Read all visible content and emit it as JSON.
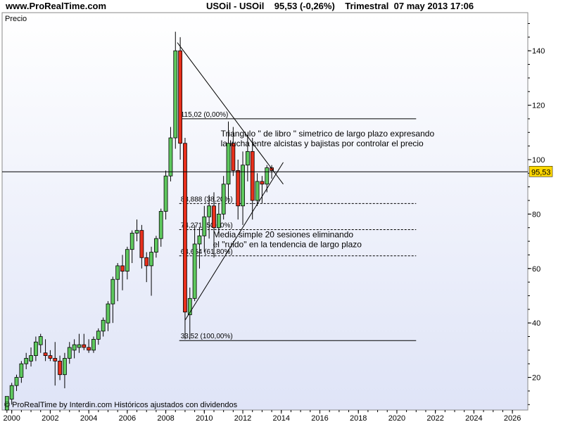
{
  "header": {
    "site": "www.ProRealTime.com",
    "symbol": "USOil - USOil",
    "price_change": "95,53 (-0,26%)",
    "period": "Trimestral",
    "datetime": "07 may 2013 17:06"
  },
  "panel": {
    "label": "Precio"
  },
  "footer": {
    "credit": "© ProRealTime by Interdin.com  Históricos ajustados con dividendos"
  },
  "colors": {
    "up": "#5ec85e",
    "down": "#e8301c",
    "bg_top": "#ffffff",
    "bg_bottom": "#dfe4f7",
    "price_tag": "#ffd700"
  },
  "chart_data": {
    "type": "candlestick",
    "x_axis": {
      "range": [
        1999.5,
        2026.8
      ],
      "ticks": [
        "2000",
        "2002",
        "2004",
        "2006",
        "2008",
        "2010",
        "2012",
        "2014",
        "2016",
        "2018",
        "2020",
        "2022",
        "2024",
        "2026"
      ]
    },
    "y_axis": {
      "range": [
        8,
        154
      ],
      "ticks": [
        "20",
        "40",
        "60",
        "80",
        "100",
        "120",
        "140"
      ],
      "position": "right"
    },
    "current_price": {
      "value": 95.53,
      "label": "95,53"
    },
    "candles": [
      {
        "t": 1999.75,
        "o": 8,
        "h": 13,
        "l": 7,
        "c": 13
      },
      {
        "t": 2000.0,
        "o": 12,
        "h": 18,
        "l": 10,
        "c": 17
      },
      {
        "t": 2000.25,
        "o": 17,
        "h": 21,
        "l": 15,
        "c": 20
      },
      {
        "t": 2000.5,
        "o": 20,
        "h": 26,
        "l": 18,
        "c": 25
      },
      {
        "t": 2000.75,
        "o": 25,
        "h": 29,
        "l": 23,
        "c": 27
      },
      {
        "t": 2001.0,
        "o": 26,
        "h": 31,
        "l": 24,
        "c": 28
      },
      {
        "t": 2001.25,
        "o": 28,
        "h": 35,
        "l": 26,
        "c": 33
      },
      {
        "t": 2001.5,
        "o": 32,
        "h": 36,
        "l": 29,
        "c": 35
      },
      {
        "t": 2001.75,
        "o": 29,
        "h": 34,
        "l": 26,
        "c": 28
      },
      {
        "t": 2002.0,
        "o": 28,
        "h": 30,
        "l": 26,
        "c": 27
      },
      {
        "t": 2002.25,
        "o": 27,
        "h": 33,
        "l": 17,
        "c": 26
      },
      {
        "t": 2002.5,
        "o": 26,
        "h": 28,
        "l": 19,
        "c": 21
      },
      {
        "t": 2002.75,
        "o": 21,
        "h": 29,
        "l": 16,
        "c": 27
      },
      {
        "t": 2003.0,
        "o": 27,
        "h": 33,
        "l": 25,
        "c": 31
      },
      {
        "t": 2003.25,
        "o": 30,
        "h": 34,
        "l": 27,
        "c": 32
      },
      {
        "t": 2003.5,
        "o": 31,
        "h": 36,
        "l": 29,
        "c": 32
      },
      {
        "t": 2003.75,
        "o": 32,
        "h": 36,
        "l": 30,
        "c": 31
      },
      {
        "t": 2004.0,
        "o": 31,
        "h": 34,
        "l": 29,
        "c": 30
      },
      {
        "t": 2004.25,
        "o": 30,
        "h": 35,
        "l": 29,
        "c": 34
      },
      {
        "t": 2004.5,
        "o": 34,
        "h": 38,
        "l": 32,
        "c": 37
      },
      {
        "t": 2004.75,
        "o": 37,
        "h": 42,
        "l": 35,
        "c": 41
      },
      {
        "t": 2005.0,
        "o": 40,
        "h": 48,
        "l": 37,
        "c": 47
      },
      {
        "t": 2005.25,
        "o": 47,
        "h": 57,
        "l": 40,
        "c": 56
      },
      {
        "t": 2005.5,
        "o": 56,
        "h": 62,
        "l": 48,
        "c": 61
      },
      {
        "t": 2005.75,
        "o": 61,
        "h": 65,
        "l": 52,
        "c": 59
      },
      {
        "t": 2006.0,
        "o": 59,
        "h": 68,
        "l": 56,
        "c": 67
      },
      {
        "t": 2006.25,
        "o": 67,
        "h": 74,
        "l": 62,
        "c": 73
      },
      {
        "t": 2006.5,
        "o": 73,
        "h": 78,
        "l": 70,
        "c": 74
      },
      {
        "t": 2006.75,
        "o": 74,
        "h": 76,
        "l": 60,
        "c": 64
      },
      {
        "t": 2007.0,
        "o": 64,
        "h": 66,
        "l": 55,
        "c": 61
      },
      {
        "t": 2007.25,
        "o": 61,
        "h": 68,
        "l": 50,
        "c": 66
      },
      {
        "t": 2007.5,
        "o": 66,
        "h": 72,
        "l": 64,
        "c": 71
      },
      {
        "t": 2007.75,
        "o": 71,
        "h": 82,
        "l": 68,
        "c": 81
      },
      {
        "t": 2008.0,
        "o": 81,
        "h": 96,
        "l": 78,
        "c": 94
      },
      {
        "t": 2008.25,
        "o": 94,
        "h": 112,
        "l": 92,
        "c": 108
      },
      {
        "t": 2008.5,
        "o": 108,
        "h": 147,
        "l": 104,
        "c": 140
      },
      {
        "t": 2008.75,
        "o": 140,
        "h": 145,
        "l": 100,
        "c": 106
      },
      {
        "t": 2009.0,
        "o": 106,
        "h": 108,
        "l": 34,
        "c": 44
      },
      {
        "t": 2009.25,
        "o": 43,
        "h": 53,
        "l": 34,
        "c": 49
      },
      {
        "t": 2009.5,
        "o": 49,
        "h": 76,
        "l": 48,
        "c": 69
      },
      {
        "t": 2009.75,
        "o": 69,
        "h": 75,
        "l": 60,
        "c": 72
      },
      {
        "t": 2010.0,
        "o": 72,
        "h": 83,
        "l": 66,
        "c": 79
      },
      {
        "t": 2010.25,
        "o": 79,
        "h": 87,
        "l": 71,
        "c": 83
      },
      {
        "t": 2010.5,
        "o": 83,
        "h": 88,
        "l": 64,
        "c": 75
      },
      {
        "t": 2010.75,
        "o": 75,
        "h": 84,
        "l": 73,
        "c": 80
      },
      {
        "t": 2011.0,
        "o": 80,
        "h": 94,
        "l": 78,
        "c": 91
      },
      {
        "t": 2011.25,
        "o": 91,
        "h": 114,
        "l": 84,
        "c": 106
      },
      {
        "t": 2011.5,
        "o": 106,
        "h": 112,
        "l": 94,
        "c": 96
      },
      {
        "t": 2011.75,
        "o": 96,
        "h": 100,
        "l": 78,
        "c": 83
      },
      {
        "t": 2012.0,
        "o": 83,
        "h": 103,
        "l": 76,
        "c": 98
      },
      {
        "t": 2012.25,
        "o": 98,
        "h": 109,
        "l": 92,
        "c": 103
      },
      {
        "t": 2012.5,
        "o": 103,
        "h": 108,
        "l": 78,
        "c": 85
      },
      {
        "t": 2012.75,
        "o": 85,
        "h": 95,
        "l": 83,
        "c": 92
      },
      {
        "t": 2013.0,
        "o": 92,
        "h": 94,
        "l": 84,
        "c": 91
      },
      {
        "t": 2013.25,
        "o": 91,
        "h": 98,
        "l": 88,
        "c": 97
      },
      {
        "t": 2013.5,
        "o": 97,
        "h": 98,
        "l": 93,
        "c": 96
      }
    ],
    "fibonacci_levels": [
      {
        "value": 115.02,
        "label": "115,02 (0,00%)",
        "style": "solid"
      },
      {
        "value": 83.888,
        "label": "83,888 (38,20%)",
        "style": "dashed"
      },
      {
        "value": 74.271,
        "label": "74,271 (50,00%)",
        "style": "dashed"
      },
      {
        "value": 64.654,
        "label": "64,654 (61,80%)",
        "style": "dashed"
      },
      {
        "value": 33.52,
        "label": "33,52 (100,00%)",
        "style": "solid"
      }
    ],
    "triangle_lines": [
      {
        "x1": 2008.6,
        "y1": 143,
        "x2": 2014.1,
        "y2": 91
      },
      {
        "x1": 2009.0,
        "y1": 41,
        "x2": 2014.1,
        "y2": 99
      }
    ],
    "annotations": [
      {
        "x": 2010.85,
        "y": 108.5,
        "lines": [
          "Triangulo \" de libro \" simetrico de largo plazo expresando",
          "la lucha entre alcistas y bajistas por controlar el precio"
        ]
      },
      {
        "x": 2010.45,
        "y": 71.5,
        "lines": [
          "Media simple 20 sesiones eliminando",
          "el \"ruido\" en la tendencia de largo plazo"
        ]
      }
    ]
  }
}
